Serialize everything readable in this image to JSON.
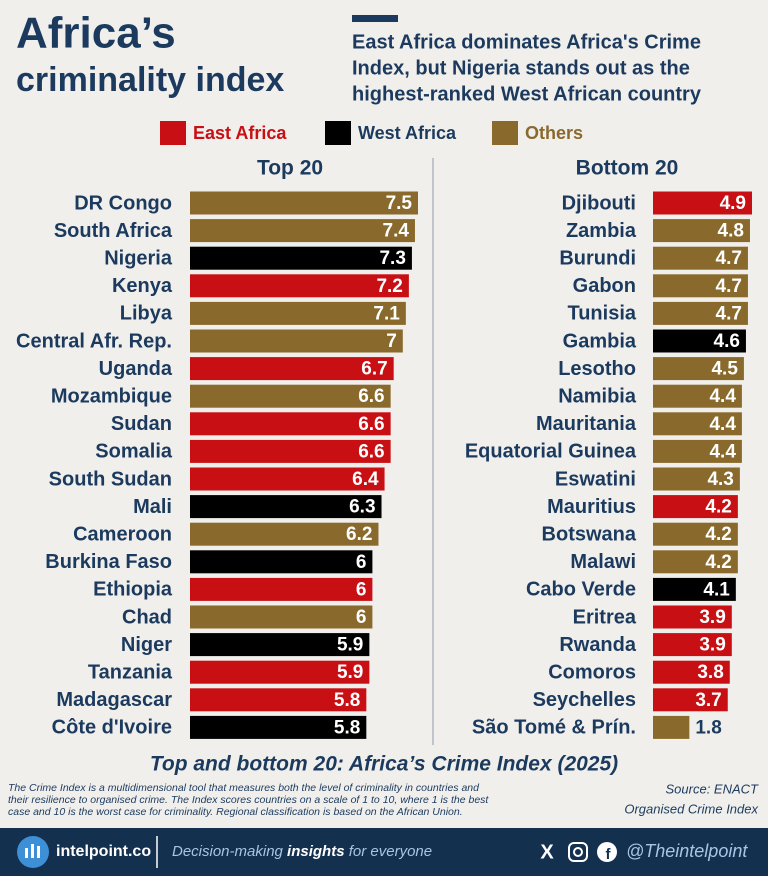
{
  "title": [
    "Africa’s",
    "criminality index"
  ],
  "subtitle": [
    "East Africa dominates Africa's Crime",
    "Index, but Nigeria stands out as the",
    "highest-ranked West African country"
  ],
  "legend": [
    {
      "name": "East Africa",
      "color": "#c80f14"
    },
    {
      "name": "West Africa",
      "color": "#000000"
    },
    {
      "name": "Others",
      "color": "#8a6a2c"
    }
  ],
  "chart_data": [
    {
      "type": "bar",
      "orientation": "horizontal",
      "title": "Top 20",
      "categories": [
        "DR Congo",
        "South Africa",
        "Nigeria",
        "Kenya",
        "Libya",
        "Central Afr. Rep.",
        "Uganda",
        "Mozambique",
        "Sudan",
        "Somalia",
        "South Sudan",
        "Mali",
        "Cameroon",
        "Burkina Faso",
        "Ethiopia",
        "Chad",
        "Niger",
        "Tanzania",
        "Madagascar",
        "Côte d'Ivoire"
      ],
      "values": [
        7.5,
        7.4,
        7.3,
        7.2,
        7.1,
        7,
        6.7,
        6.6,
        6.6,
        6.6,
        6.4,
        6.3,
        6.2,
        6,
        6,
        6,
        5.9,
        5.9,
        5.8,
        5.8
      ],
      "colors": [
        "#8a6a2c",
        "#8a6a2c",
        "#000000",
        "#c80f14",
        "#8a6a2c",
        "#8a6a2c",
        "#c80f14",
        "#8a6a2c",
        "#c80f14",
        "#c80f14",
        "#c80f14",
        "#000000",
        "#8a6a2c",
        "#000000",
        "#c80f14",
        "#8a6a2c",
        "#000000",
        "#c80f14",
        "#c80f14",
        "#000000"
      ]
    },
    {
      "type": "bar",
      "orientation": "horizontal",
      "title": "Bottom 20",
      "categories": [
        "Djibouti",
        "Zambia",
        "Burundi",
        "Gabon",
        "Tunisia",
        "Gambia",
        "Lesotho",
        "Namibia",
        "Mauritania",
        "Equatorial Guinea",
        "Eswatini",
        "Mauritius",
        "Botswana",
        "Malawi",
        "Cabo Verde",
        "Eritrea",
        "Rwanda",
        "Comoros",
        "Seychelles",
        "São Tomé & Prín."
      ],
      "values": [
        4.9,
        4.8,
        4.7,
        4.7,
        4.7,
        4.6,
        4.5,
        4.4,
        4.4,
        4.4,
        4.3,
        4.2,
        4.2,
        4.2,
        4.1,
        3.9,
        3.9,
        3.8,
        3.7,
        1.8
      ],
      "colors": [
        "#c80f14",
        "#8a6a2c",
        "#8a6a2c",
        "#8a6a2c",
        "#8a6a2c",
        "#000000",
        "#8a6a2c",
        "#8a6a2c",
        "#8a6a2c",
        "#8a6a2c",
        "#8a6a2c",
        "#c80f14",
        "#8a6a2c",
        "#8a6a2c",
        "#000000",
        "#c80f14",
        "#c80f14",
        "#c80f14",
        "#c80f14",
        "#8a6a2c"
      ]
    }
  ],
  "caption": "Top and bottom 20: Africa’s Crime Index (2025)",
  "note": [
    "The Crime Index is a multidimensional tool that measures both the level of criminality in countries and",
    "their resilience to organised crime. The Index scores countries on a scale of 1 to 10, where 1 is the best",
    "case and 10 is the worst case for criminality. Regional classification is based on the African Union."
  ],
  "source": [
    "Source: ENACT",
    "Organised Crime Index"
  ],
  "footer": {
    "brand": "intelpoint.co",
    "tagline": [
      "Decision-making ",
      "insights",
      " for everyone"
    ],
    "handle": "@Theintelpoint"
  }
}
